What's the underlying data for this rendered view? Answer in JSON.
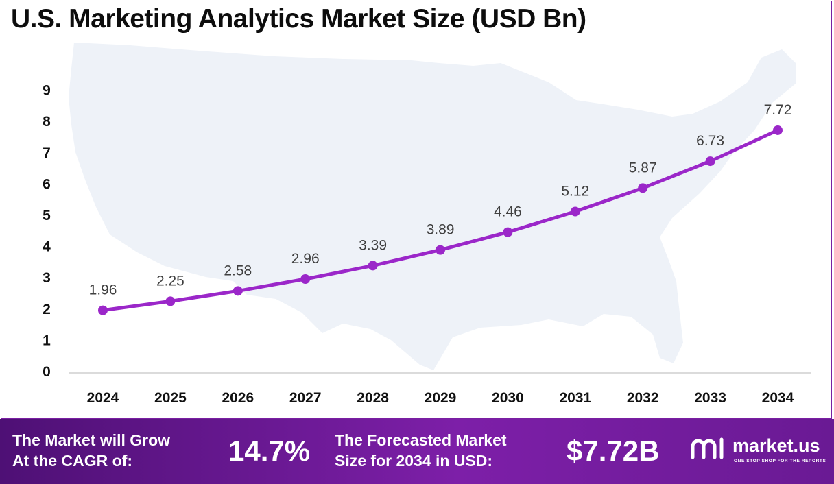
{
  "title": "U.S. Marketing Analytics Market Size (USD Bn)",
  "chart_data": {
    "type": "line",
    "title": "U.S. Marketing Analytics Market Size (USD Bn)",
    "categories": [
      "2024",
      "2025",
      "2026",
      "2027",
      "2028",
      "2029",
      "2030",
      "2031",
      "2032",
      "2033",
      "2034"
    ],
    "values": [
      1.96,
      2.25,
      2.58,
      2.96,
      3.39,
      3.89,
      4.46,
      5.12,
      5.87,
      6.73,
      7.72
    ],
    "value_labels": [
      "1.96",
      "2.25",
      "2.58",
      "2.96",
      "3.39",
      "3.89",
      "4.46",
      "5.12",
      "5.87",
      "6.73",
      "7.72"
    ],
    "y_ticks": [
      "0",
      "1",
      "2",
      "3",
      "4",
      "5",
      "6",
      "7",
      "8",
      "9"
    ],
    "ylim": [
      0,
      9
    ],
    "xlabel": "",
    "ylabel": "",
    "grid": false,
    "line_color": "#9b27c9",
    "background_shape": "us-map-silhouette"
  },
  "footer": {
    "cagr_label": "The Market will Grow\nAt the CAGR of:",
    "cagr_value": "14.7%",
    "forecast_label": "The Forecasted Market\nSize for 2034 in USD:",
    "forecast_value": "$7.72B",
    "brand_name": "market.us",
    "brand_tagline": "ONE STOP SHOP FOR THE REPORTS",
    "brand_icon": "market-us-logo-icon"
  },
  "colors": {
    "accent": "#9b27c9",
    "footer_bg": "#6a1a94",
    "map_fill": "#eef2f8"
  }
}
